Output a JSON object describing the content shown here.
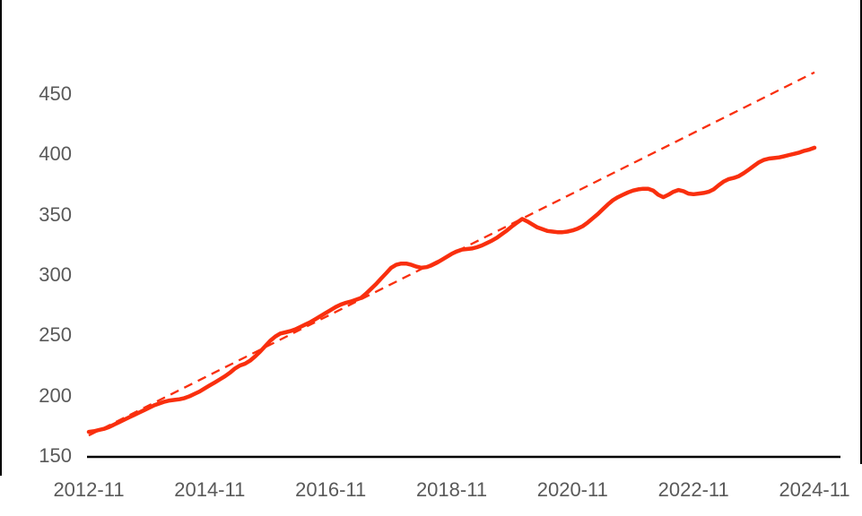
{
  "frame": {
    "background_color": "#ffffff",
    "left_border_color": "#000000",
    "right_border_color": "#000000"
  },
  "chart_data": {
    "type": "line",
    "title": "",
    "xlabel": "",
    "ylabel": "",
    "grid": false,
    "legend": "none",
    "x_tick_labels": [
      "2012-11",
      "2014-11",
      "2016-11",
      "2018-11",
      "2020-11",
      "2022-11",
      "2024-11"
    ],
    "y_tick_labels": [
      "150",
      "200",
      "250",
      "300",
      "350",
      "400",
      "450"
    ],
    "y_tick_values": [
      150,
      200,
      250,
      300,
      350,
      400,
      450
    ],
    "ylim": [
      150,
      475
    ],
    "x_range": [
      "2012-11",
      "2024-11"
    ],
    "frequency": "monthly",
    "axis": {
      "baseline_value": 150,
      "axis_line_color": "#000000",
      "tick_label_color": "#595959"
    },
    "series": [
      {
        "name": "actual",
        "style": "solid",
        "color": "#F92F0E",
        "stroke_width": 4.5,
        "values": [
          170,
          170.5,
          171.5,
          172.5,
          174,
          176,
          178,
          180,
          182,
          184,
          186,
          188,
          190,
          192,
          193.5,
          195,
          196,
          196.5,
          197,
          198,
          199.5,
          201.5,
          203.5,
          206,
          208.5,
          211,
          213.5,
          216,
          219,
          222.5,
          225,
          226.5,
          229,
          232.5,
          236.5,
          241,
          245.5,
          249,
          251.5,
          252.5,
          253.5,
          255,
          257,
          259,
          261,
          263.5,
          266,
          268.5,
          271,
          273.5,
          275.5,
          277,
          278,
          279.5,
          281,
          284.5,
          288.5,
          292.5,
          297,
          301.5,
          306,
          308.5,
          309.5,
          309.5,
          308.5,
          307,
          306,
          306.5,
          308,
          310,
          312.5,
          315,
          317.5,
          319.5,
          321,
          321.5,
          322,
          323,
          324.5,
          326.5,
          328.5,
          331,
          334,
          337,
          340.5,
          343.5,
          346.5,
          344.5,
          342,
          339.5,
          338,
          336.5,
          336,
          335.5,
          335.5,
          336,
          337,
          338.5,
          340.5,
          343.5,
          347,
          350.5,
          354.5,
          358.5,
          362,
          364.5,
          366.5,
          368.5,
          370,
          371,
          371.5,
          371.5,
          370,
          366.5,
          364.5,
          366.5,
          369,
          370.5,
          369.5,
          367.5,
          367,
          367.5,
          368,
          369,
          371,
          374.5,
          377.5,
          379.5,
          380.5,
          382,
          384.5,
          387.5,
          390.5,
          393.5,
          395.5,
          396.5,
          397,
          397.5,
          398.5,
          399.5,
          400.5,
          401.5,
          403,
          404,
          405.5
        ]
      },
      {
        "name": "linear-trend",
        "style": "dashed",
        "color": "#F92F0E",
        "stroke_width": 2.3,
        "note": "straight dashed trend line spanning full x range",
        "values": [
          167,
          468
        ]
      }
    ]
  }
}
